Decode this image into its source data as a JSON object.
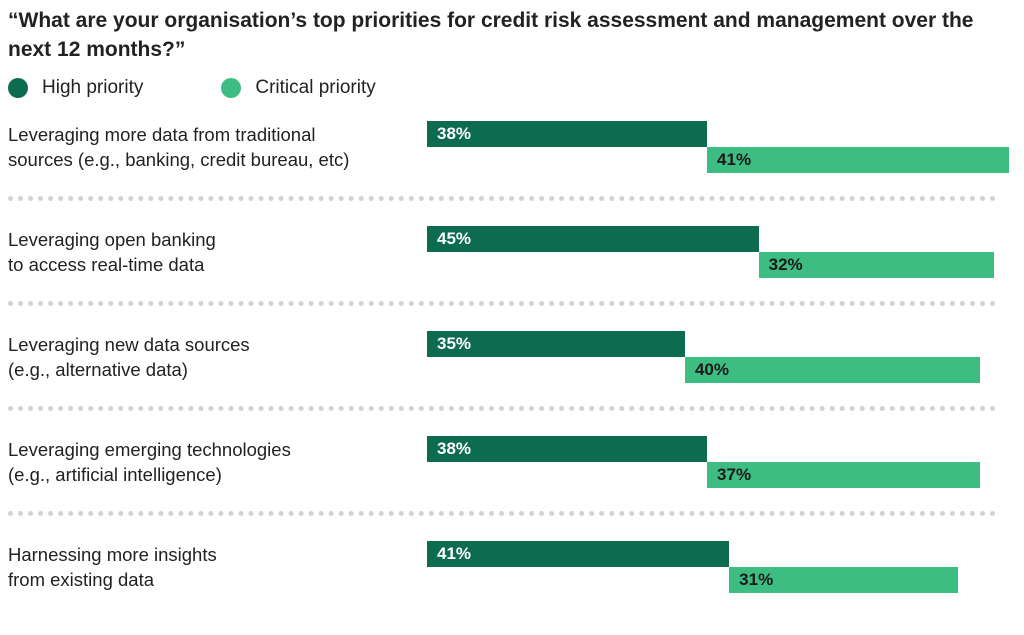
{
  "title": "“What are your organisation’s top priorities for credit risk assessment and management over the next 12 months?”",
  "colors": {
    "high": "#0d6b50",
    "critical": "#3ebd82"
  },
  "chart_data": {
    "type": "bar",
    "orientation": "horizontal-diverging",
    "title": "“What are your organisation’s top priorities for credit risk assessment and management over the next 12 months?”",
    "legend": [
      "High priority",
      "Critical priority"
    ],
    "legend_placement": "top-left",
    "categories": [
      "Leveraging more data from traditional\nsources (e.g., banking, credit bureau, etc)",
      "Leveraging open banking\nto access real-time data",
      "Leveraging new data sources\n(e.g., alternative data)",
      "Leveraging emerging technologies\n(e.g., artificial intelligence)",
      "Harnessing more insights\nfrom existing data"
    ],
    "series": [
      {
        "name": "High priority",
        "values": [
          38,
          45,
          35,
          38,
          41
        ],
        "labels": [
          "38%",
          "45%",
          "35%",
          "38%",
          "41%"
        ]
      },
      {
        "name": "Critical priority",
        "values": [
          41,
          32,
          40,
          37,
          31
        ],
        "labels": [
          "41%",
          "32%",
          "40%",
          "37%",
          "31%"
        ]
      }
    ],
    "unit": "%",
    "grid": false
  }
}
